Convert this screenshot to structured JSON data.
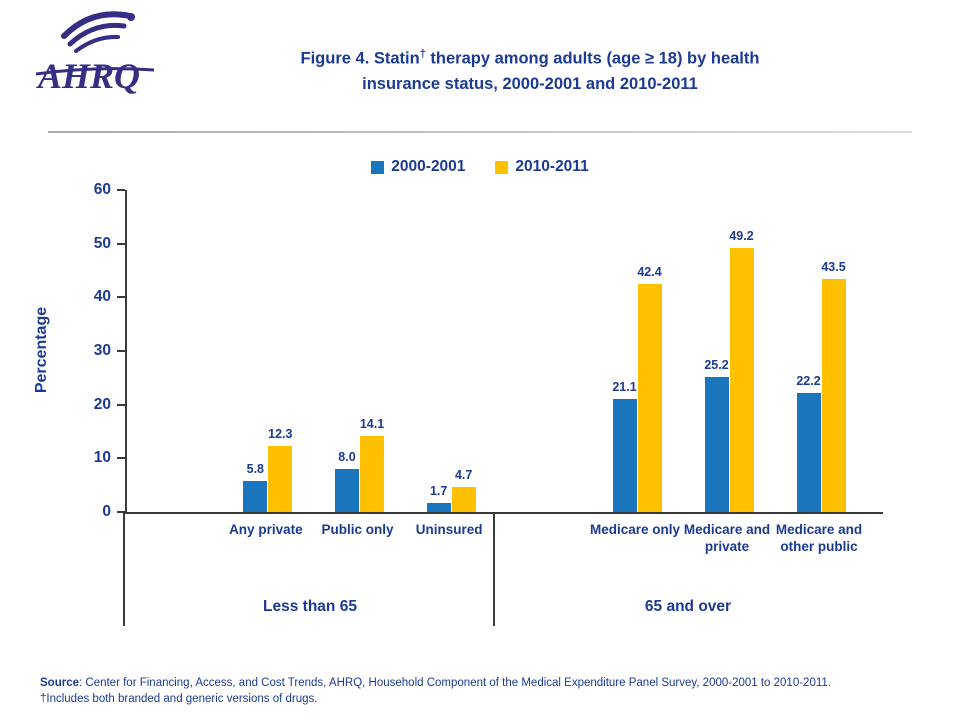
{
  "logo": {
    "wordmark": "AHRQ"
  },
  "title": {
    "line1_pre": "Figure 4. Statin",
    "dagger": "†",
    "line1_post": " therapy among adults (age ≥ 18) by health",
    "line2": "insurance status,  2000-2001 and 2010-2011"
  },
  "chart_data": {
    "type": "bar",
    "title": "Figure 4. Statin† therapy among adults (age ≥ 18) by health insurance status, 2000-2001 and 2010-2011",
    "ylabel": "Percentage",
    "ylim": [
      0,
      60
    ],
    "yticks": [
      0,
      10,
      20,
      30,
      40,
      50,
      60
    ],
    "grid": false,
    "legend_position": "top-center",
    "series_names": [
      "2000-2001",
      "2010-2011"
    ],
    "series_colors": [
      "#1B75BC",
      "#FFC000"
    ],
    "groups": [
      {
        "label": "Less than 65",
        "categories": [
          {
            "label": "Any private",
            "values": [
              5.8,
              12.3
            ]
          },
          {
            "label": "Public only",
            "values": [
              8.0,
              14.1
            ]
          },
          {
            "label": "Uninsured",
            "values": [
              1.7,
              4.7
            ]
          }
        ]
      },
      {
        "label": "65 and over",
        "categories": [
          {
            "label": "Medicare only",
            "values": [
              21.1,
              42.4
            ]
          },
          {
            "label": "Medicare and private",
            "values": [
              25.2,
              49.2
            ]
          },
          {
            "label": "Medicare and other public",
            "values": [
              22.2,
              43.5
            ]
          }
        ]
      }
    ]
  },
  "footer": {
    "source_label": "Source",
    "line1_rest": ": Center for Financing, Access, and Cost Trends, AHRQ,  Household Component of the Medical Expenditure Panel Survey,  2000-2001 to  2010-2011.",
    "line2": "†Includes both branded and generic versions of drugs."
  }
}
